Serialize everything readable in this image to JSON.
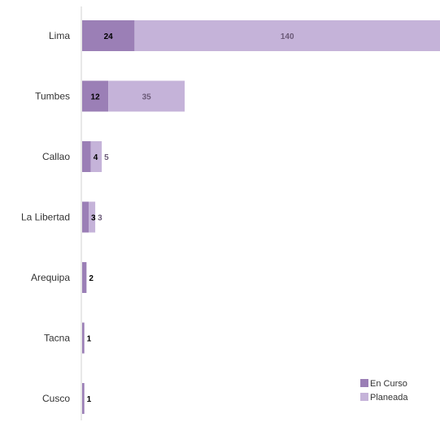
{
  "chart_data": {
    "type": "bar",
    "orientation": "horizontal",
    "stacked": true,
    "categories": [
      "Lima",
      "Tumbes",
      "Callao",
      "La Libertad",
      "Arequipa",
      "Tacna",
      "Cusco"
    ],
    "series": [
      {
        "name": "En Curso",
        "values": [
          24,
          12,
          4,
          3,
          2,
          1,
          1
        ],
        "color": "#9b7fb6"
      },
      {
        "name": "Planeada",
        "values": [
          140,
          35,
          5,
          3,
          0,
          0,
          0
        ],
        "color": "#c5b3d9"
      }
    ],
    "data_label_colors": {
      "En Curso": "#000000",
      "Planeada": "#6b5a78"
    },
    "xlim": [
      0,
      164
    ],
    "grid": false,
    "legend_position": "bottom-right"
  }
}
